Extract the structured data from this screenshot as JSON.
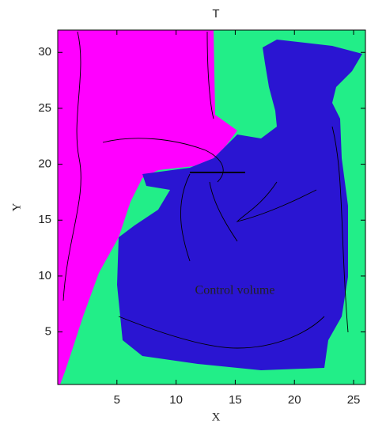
{
  "chart_data": {
    "type": "region-map",
    "title": "T",
    "xlabel": "X",
    "ylabel": "Y",
    "annotation": "Control volume",
    "xlim": [
      0,
      26
    ],
    "xticks": [
      5,
      10,
      15,
      20,
      25
    ],
    "ylim": [
      0.3,
      32
    ],
    "yticks": [
      5,
      10,
      15,
      20,
      25,
      30
    ]
  }
}
